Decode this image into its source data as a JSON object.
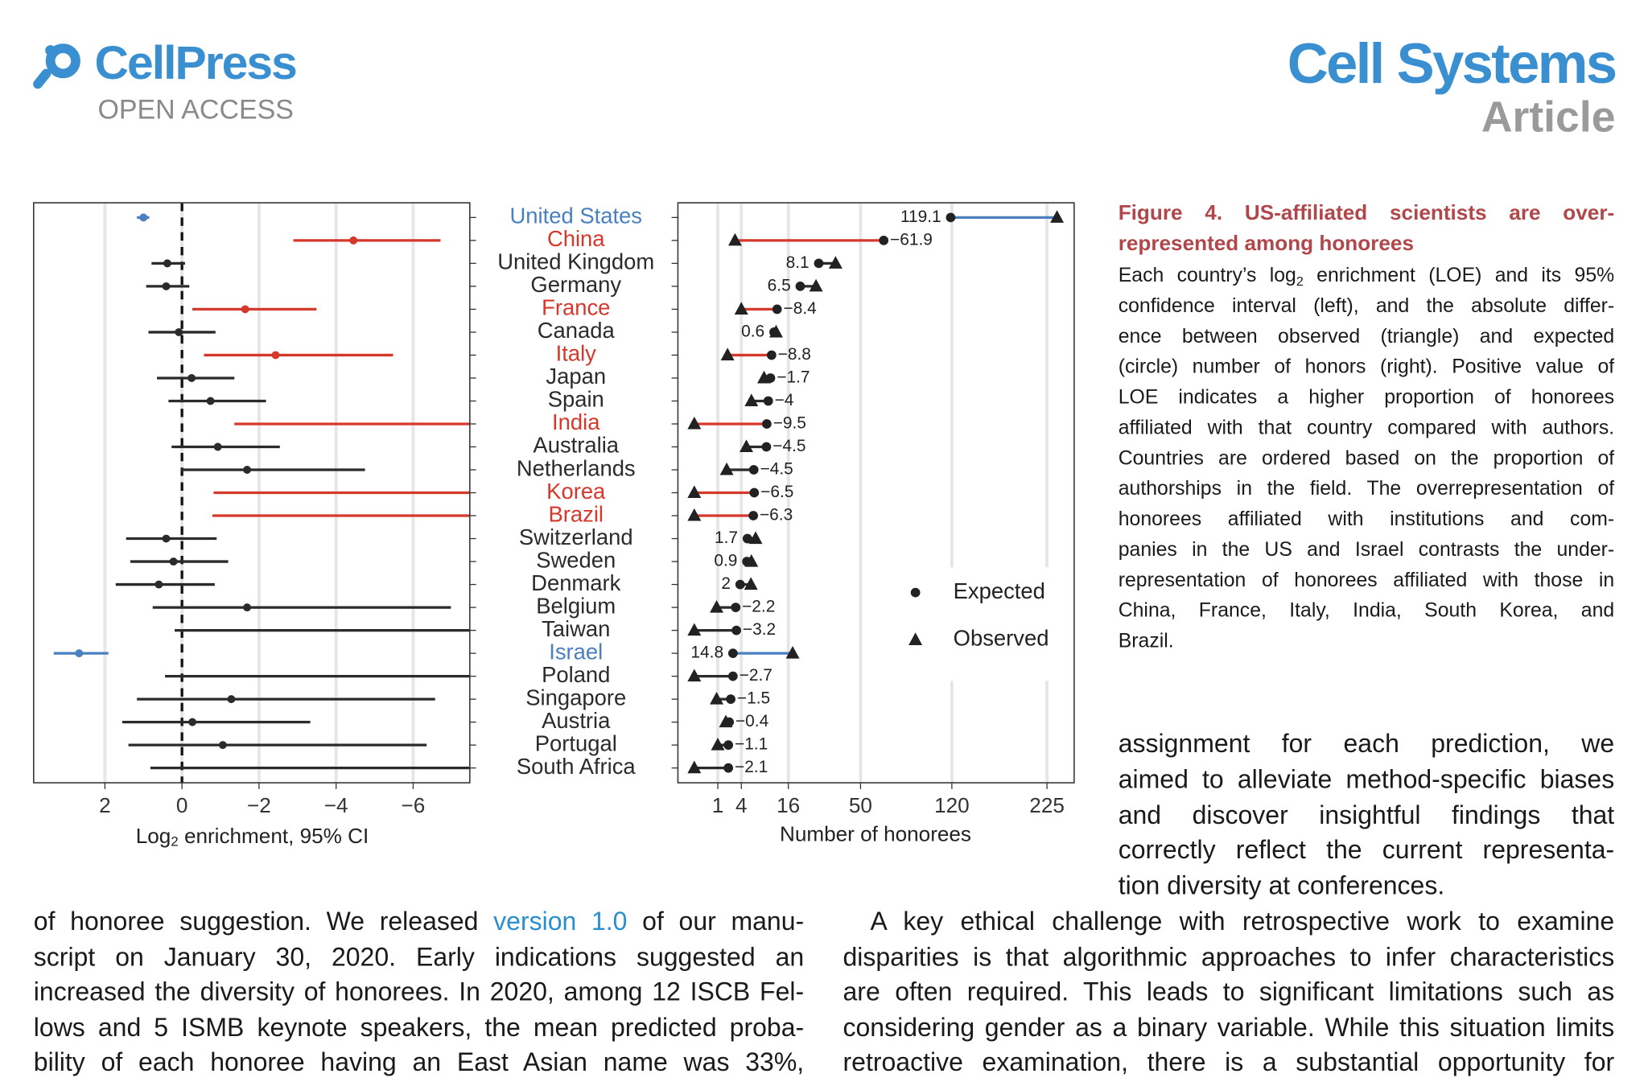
{
  "header": {
    "brand": "CellPress",
    "access": "OPEN ACCESS",
    "journal": "Cell Systems",
    "section": "Article"
  },
  "chart_data": [
    {
      "type": "dot_ci",
      "categories": [
        "United States",
        "China",
        "United Kingdom",
        "Germany",
        "France",
        "Canada",
        "Italy",
        "Japan",
        "Spain",
        "India",
        "Australia",
        "Netherlands",
        "Korea",
        "Brazil",
        "Switzerland",
        "Sweden",
        "Denmark",
        "Belgium",
        "Taiwan",
        "Israel",
        "Poland",
        "Singapore",
        "Austria",
        "Portugal",
        "South Africa"
      ],
      "values": [
        1.0,
        -4.45,
        0.38,
        0.41,
        -1.64,
        0.08,
        -2.43,
        -0.25,
        -0.74,
        null,
        -0.93,
        -1.69,
        null,
        null,
        0.41,
        0.22,
        0.6,
        -1.69,
        null,
        2.67,
        null,
        -1.28,
        -0.27,
        -1.06,
        null
      ],
      "ci_upper": [
        1.17,
        -2.89,
        0.79,
        0.93,
        -0.27,
        0.87,
        -0.57,
        0.65,
        0.35,
        -1.36,
        0.27,
        0.03,
        -0.82,
        -0.79,
        1.45,
        1.34,
        1.72,
        0.76,
        0.19,
        3.33,
        0.44,
        1.17,
        1.55,
        1.39,
        0.82
      ],
      "ci_lower": [
        0.85,
        -6.71,
        -0.08,
        -0.19,
        -3.49,
        -0.87,
        -5.48,
        -1.36,
        -2.18,
        null,
        -2.54,
        -4.75,
        null,
        null,
        -0.9,
        -1.2,
        -0.85,
        -6.98,
        null,
        1.91,
        null,
        -6.57,
        -3.33,
        -6.35,
        null
      ],
      "colors": [
        "#4a80c0",
        "#d7382c",
        "#2b2b2b",
        "#2b2b2b",
        "#d7382c",
        "#2b2b2b",
        "#d7382c",
        "#2b2b2b",
        "#2b2b2b",
        "#d7382c",
        "#2b2b2b",
        "#2b2b2b",
        "#d7382c",
        "#d7382c",
        "#2b2b2b",
        "#2b2b2b",
        "#2b2b2b",
        "#2b2b2b",
        "#2b2b2b",
        "#4a80c0",
        "#2b2b2b",
        "#2b2b2b",
        "#2b2b2b",
        "#2b2b2b",
        "#2b2b2b"
      ],
      "xlim": [
        3.85,
        -7.47
      ],
      "xticks": [
        2,
        0,
        {
          "value": -2,
          "label": "−2"
        },
        {
          "value": -4,
          "label": "−4"
        },
        {
          "value": -6,
          "label": "−6"
        }
      ],
      "reference_line": 0,
      "grid": true,
      "xlabel": {
        "pre": "Log",
        "sub": "2",
        "post": " enrichment, 95% CI"
      }
    },
    {
      "type": "dumbbell",
      "scale": "sqrt",
      "series": [
        {
          "name": "Expected",
          "marker": "circle",
          "color": "#222222",
          "values": [
            118.9,
            64.9,
            28.0,
            20.3,
            12.4,
            11.5,
            10.8,
            10.5,
            9.9,
            9.5,
            9.4,
            6.4,
            6.5,
            6.3,
            5.1,
            5.0,
            3.8,
            3.1,
            3.2,
            2.7,
            2.7,
            2.4,
            2.2,
            2.1,
            2.1
          ]
        },
        {
          "name": "Observed",
          "marker": "triangle",
          "color": "#222222",
          "values": [
            238,
            3,
            36.1,
            26.8,
            4,
            12.1,
            2,
            8.8,
            5.9,
            0,
            4.9,
            1.9,
            0,
            0,
            6.8,
            5.9,
            5.8,
            0.9,
            0,
            17.5,
            0,
            0.9,
            1.8,
            1.0,
            0
          ]
        }
      ],
      "differences": [
        119.1,
        -61.9,
        8.1,
        6.5,
        -8.4,
        0.6,
        -8.8,
        -1.7,
        -4,
        -9.5,
        -4.5,
        -4.5,
        -6.5,
        -6.3,
        1.7,
        0.9,
        2,
        -2.2,
        -3.2,
        14.8,
        -2.7,
        -1.5,
        -0.4,
        -1.1,
        -2.1
      ],
      "difference_labels": [
        "119.1",
        "−61.9",
        "8.1",
        "6.5",
        "−8.4",
        "0.6",
        "−8.8",
        "−1.7",
        "−4",
        "−9.5",
        "−4.5",
        "−4.5",
        "−6.5",
        "−6.3",
        "1.7",
        "0.9",
        "2",
        "−2.2",
        "−3.2",
        "14.8",
        "−2.7",
        "−1.5",
        "−0.4",
        "−1.1",
        "−2.1"
      ],
      "xlim": [
        0,
        261
      ],
      "xticks": [
        1,
        4,
        16,
        50,
        120,
        225
      ],
      "grid": true,
      "legend": "lower right",
      "xlabel": "Number of honorees"
    }
  ],
  "caption": {
    "title": [
      "Figure 4. US-affiliated scientists are over-",
      "represented among honorees"
    ],
    "lines": [
      {
        "pre": "Each country’s log",
        "sub": "2",
        "post": " enrichment (LOE) and its 95%"
      },
      "confidence interval (left), and the absolute differ-",
      "ence between observed (triangle) and expected",
      "(circle) number of honors (right). Positive value of",
      "LOE indicates a higher proportion of honorees",
      "affiliated with that country compared with authors.",
      "Countries are ordered based on the proportion of",
      "authorships in the field. The overrepresentation of",
      "honorees affiliated with institutions and com-",
      "panies in the US and Israel contrasts the under-",
      "representation of honorees affiliated with those in",
      "China, France, Italy, India, South Korea, and",
      "Brazil."
    ]
  },
  "body": {
    "right_top": [
      "assignment for each prediction, we",
      "aimed to alleviate method-specific biases",
      "and discover insightful findings that",
      "correctly reflect the current representa-",
      "tion diversity at conferences."
    ],
    "left_bottom": [
      {
        "pre": "of honoree suggestion. We released ",
        "link": "version 1.0",
        "post": " of our manu-"
      },
      "script on January 30, 2020. Early indications suggested an",
      "increased the diversity of honorees. In 2020, among 12 ISCB Fel-",
      "lows and 5 ISMB keynote speakers, the mean predicted proba-",
      "bility of each honoree having an East Asian name was 33%,"
    ],
    "right_bottom": [
      "A key ethical challenge with retrospective work to examine",
      "disparities is that algorithmic approaches to infer characteristics",
      "are often required. This leads to significant limitations such as",
      "considering gender as a binary variable. While this situation limits",
      "retroactive examination, there is a substantial opportunity for"
    ]
  }
}
